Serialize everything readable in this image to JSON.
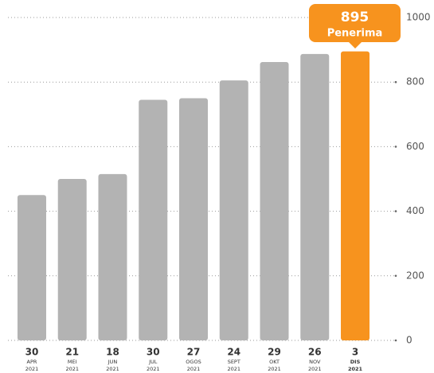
{
  "chart_data": {
    "type": "bar",
    "categories": [
      {
        "day": "30",
        "month": "APR",
        "year": "2021"
      },
      {
        "day": "21",
        "month": "MEI",
        "year": "2021"
      },
      {
        "day": "18",
        "month": "JUN",
        "year": "2021"
      },
      {
        "day": "30",
        "month": "JUL",
        "year": "2021"
      },
      {
        "day": "27",
        "month": "OGOS",
        "year": "2021"
      },
      {
        "day": "24",
        "month": "SEPT",
        "year": "2021"
      },
      {
        "day": "29",
        "month": "OKT",
        "year": "2021"
      },
      {
        "day": "26",
        "month": "NOV",
        "year": "2021"
      },
      {
        "day": "3",
        "month": "DIS",
        "year": "2021"
      }
    ],
    "values": [
      450,
      500,
      515,
      745,
      750,
      805,
      862,
      887,
      895
    ],
    "colors": [
      "#b3b3b3",
      "#b3b3b3",
      "#b3b3b3",
      "#b3b3b3",
      "#b3b3b3",
      "#b3b3b3",
      "#b3b3b3",
      "#b3b3b3",
      "#f7931e"
    ],
    "annotation": "Penerima",
    "ylim": [
      0,
      1000
    ],
    "yticks": [
      0,
      200,
      400,
      600,
      800,
      1000
    ],
    "grid": true
  }
}
